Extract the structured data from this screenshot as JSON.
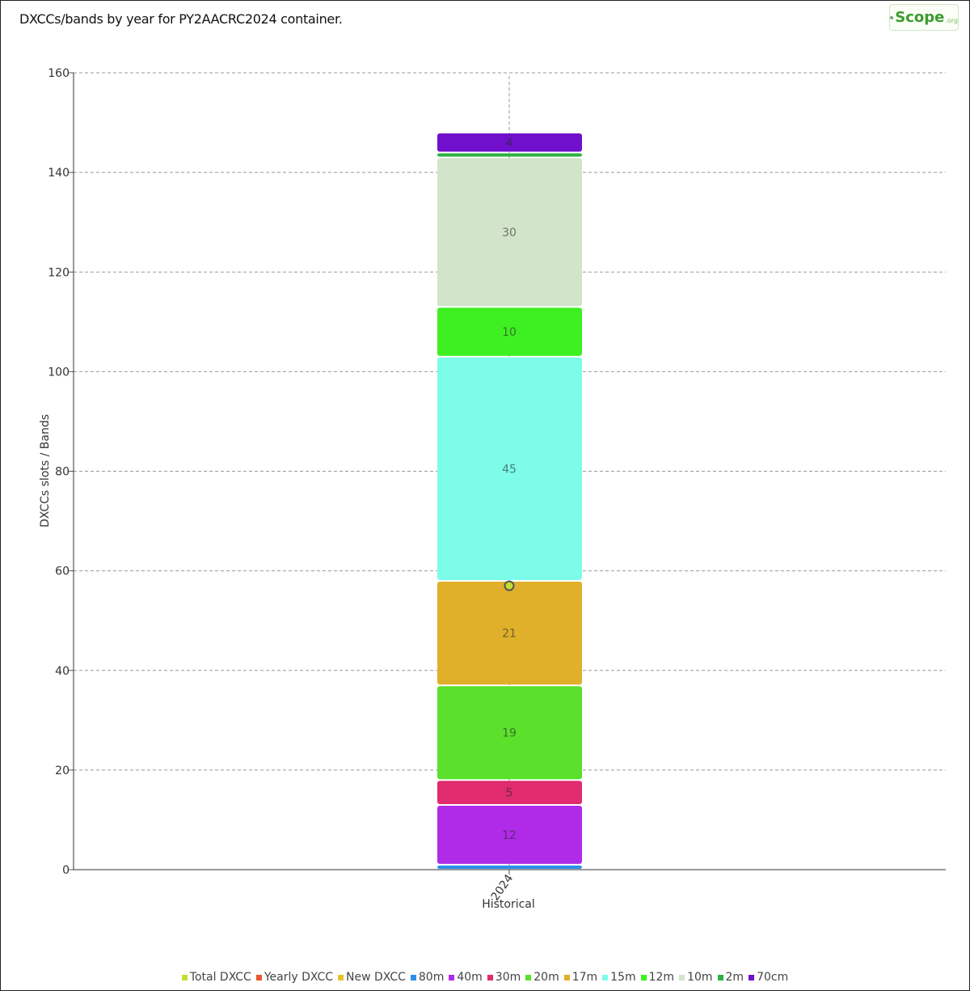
{
  "title": "DXCCs/bands by year for PY2AACRC2024 container.",
  "logo": {
    "text": "Scope",
    "suffix": ".org"
  },
  "chart_data": {
    "type": "bar",
    "stacked": true,
    "categories": [
      "2024"
    ],
    "xlabel": "Historical",
    "ylabel": "DXCCs slots / Bands",
    "ylim": [
      0,
      160
    ],
    "yticks": [
      0,
      20,
      40,
      60,
      80,
      100,
      120,
      140,
      160
    ],
    "grid": true,
    "legend_position": "bottom",
    "series": [
      {
        "name": "Total DXCC",
        "color": "#c5dd34",
        "values": [
          57
        ],
        "style": "point"
      },
      {
        "name": "Yearly DXCC",
        "color": "#e8572b",
        "values": [
          null
        ]
      },
      {
        "name": "New DXCC",
        "color": "#e8c12b",
        "values": [
          null
        ]
      },
      {
        "name": "80m",
        "color": "#2b91e8",
        "values": [
          1
        ]
      },
      {
        "name": "40m",
        "color": "#b02be8",
        "values": [
          12
        ]
      },
      {
        "name": "30m",
        "color": "#e02b6e",
        "values": [
          5
        ]
      },
      {
        "name": "20m",
        "color": "#5be02b",
        "values": [
          19
        ]
      },
      {
        "name": "17m",
        "color": "#e0b02b",
        "values": [
          21
        ]
      },
      {
        "name": "15m",
        "color": "#7dfcea",
        "values": [
          45
        ]
      },
      {
        "name": "12m",
        "color": "#3ef021",
        "values": [
          10
        ]
      },
      {
        "name": "10m",
        "color": "#d2e4c9",
        "values": [
          30
        ]
      },
      {
        "name": "2m",
        "color": "#2eb041",
        "values": [
          1
        ]
      },
      {
        "name": "70cm",
        "color": "#7010cc",
        "values": [
          4
        ]
      }
    ],
    "data_labels": [
      "",
      "12",
      "5",
      "19",
      "21",
      "45",
      "10",
      "30",
      "",
      "4"
    ]
  }
}
